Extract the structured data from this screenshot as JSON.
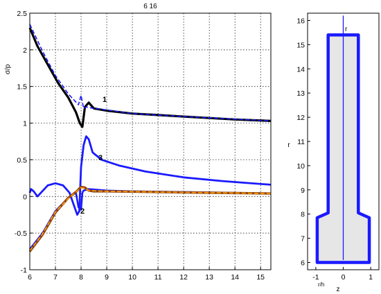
{
  "chart_data": [
    {
      "type": "line",
      "title": "6  16",
      "xlabel": "",
      "ylabel": "σ/p",
      "xlim": [
        6,
        15.4
      ],
      "ylim": [
        -1,
        2.5
      ],
      "grid": true,
      "xticks": [
        "6",
        "7",
        "8",
        "9",
        "10",
        "11",
        "12",
        "13",
        "14",
        "15"
      ],
      "yticks": [
        "2.5",
        "2",
        "1.5",
        "1",
        "0.5",
        "0",
        "-0.5",
        "-1"
      ],
      "annotations": [
        "1",
        "2",
        "3"
      ],
      "series": [
        {
          "color": "#000000",
          "style": "solid",
          "x": [
            6,
            6.3,
            6.7,
            7.1,
            7.5,
            7.8,
            7.95,
            8.05,
            8.15,
            8.3,
            8.5,
            9,
            10,
            11,
            12,
            13,
            14,
            15.4
          ],
          "y": [
            2.3,
            2.05,
            1.8,
            1.55,
            1.35,
            1.15,
            1.0,
            0.95,
            1.22,
            1.28,
            1.2,
            1.17,
            1.13,
            1.11,
            1.09,
            1.07,
            1.05,
            1.03
          ]
        },
        {
          "color": "#1a1aff",
          "style": "dashed",
          "x": [
            6,
            6.5,
            7,
            7.5,
            7.9,
            8.0,
            8.1,
            8.2,
            8.5,
            9,
            10,
            12,
            15.4
          ],
          "y": [
            2.35,
            1.98,
            1.65,
            1.4,
            1.25,
            1.38,
            1.2,
            1.22,
            1.2,
            1.18,
            1.13,
            1.09,
            1.03
          ]
        },
        {
          "color": "#1a1aff",
          "style": "solid",
          "x": [
            6,
            6.05,
            6.15,
            6.3,
            6.7,
            7.0,
            7.3,
            7.55,
            7.7,
            7.85,
            7.93,
            8.0,
            8.1,
            8.2,
            8.3,
            8.45,
            8.8,
            9.5,
            10.5,
            12,
            13.5,
            15.4
          ],
          "y": [
            0.05,
            0.1,
            0.07,
            0.0,
            0.15,
            0.18,
            0.15,
            0.05,
            -0.1,
            -0.25,
            -0.2,
            0.4,
            0.7,
            0.82,
            0.78,
            0.6,
            0.5,
            0.42,
            0.34,
            0.26,
            0.21,
            0.16
          ]
        },
        {
          "color": "#1a1aff",
          "style": "solid",
          "x": [
            6,
            6.5,
            7.0,
            7.5,
            7.8,
            7.9,
            8.0,
            8.05,
            8.1,
            8.3,
            9,
            10,
            12,
            15.4
          ],
          "y": [
            -0.72,
            -0.5,
            -0.2,
            -0.02,
            0.05,
            -0.15,
            -0.18,
            0.05,
            0.08,
            0.1,
            0.08,
            0.07,
            0.06,
            0.04
          ]
        },
        {
          "color": "#8b4513",
          "style": "solid",
          "x": [
            6,
            6.5,
            7.0,
            7.5,
            7.8,
            8.0,
            8.15,
            8.3,
            8.5,
            9,
            10,
            12,
            15.4
          ],
          "y": [
            -0.75,
            -0.52,
            -0.22,
            -0.02,
            0.06,
            0.13,
            0.12,
            0.08,
            0.07,
            0.07,
            0.065,
            0.055,
            0.04
          ]
        },
        {
          "color": "#ff9900",
          "style": "dashed",
          "x": [
            6,
            6.5,
            7.0,
            7.5,
            7.8,
            8.0,
            8.15,
            8.3,
            9,
            10,
            12,
            15.4
          ],
          "y": [
            -0.74,
            -0.51,
            -0.21,
            -0.03,
            0.06,
            0.12,
            0.11,
            0.08,
            0.07,
            0.065,
            0.055,
            0.04
          ]
        }
      ]
    },
    {
      "type": "line",
      "title": "",
      "xlabel": "z",
      "ylabel": "r",
      "xlim": [
        -1.3,
        1.3
      ],
      "ylim": [
        5.7,
        16.3
      ],
      "grid": false,
      "xticks": [
        "-1",
        "0",
        "1"
      ],
      "xtick_sub": "r/h",
      "yticks": [
        "6",
        "7",
        "8",
        "9",
        "10",
        "11",
        "12",
        "13",
        "14",
        "15",
        "16"
      ],
      "annotation": "r",
      "shape": {
        "stroke": "#1a1aff",
        "fill": "#e6e6e6",
        "outline": [
          [
            -0.95,
            6
          ],
          [
            0.95,
            6
          ],
          [
            0.95,
            7.85
          ],
          [
            0.55,
            8.05
          ],
          [
            0.55,
            15.4
          ],
          [
            -0.55,
            15.4
          ],
          [
            -0.55,
            8.05
          ],
          [
            -0.95,
            7.85
          ]
        ],
        "axis_line": {
          "x": 0,
          "y": [
            6.1,
            16.2
          ]
        }
      }
    }
  ]
}
